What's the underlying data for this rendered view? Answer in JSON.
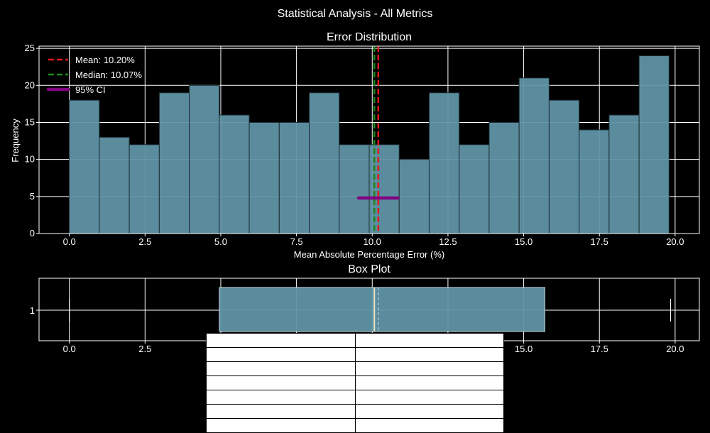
{
  "figure": {
    "suptitle": "Statistical Analysis - All Metrics"
  },
  "colors": {
    "background": "#000000",
    "bar": "#5f93a5",
    "box": "#5f93a5",
    "mean": "#e31a1c",
    "median": "#1a8a1a",
    "ci": "#800080"
  },
  "chart_data": [
    {
      "type": "bar",
      "title": "Error Distribution",
      "xlabel": "Mean Absolute Percentage Error (%)",
      "ylabel": "Frequency",
      "xlim": [
        -1.0,
        20.8
      ],
      "ylim": [
        0,
        25.3
      ],
      "xticks": [
        0.0,
        2.5,
        5.0,
        7.5,
        10.0,
        12.5,
        15.0,
        17.5,
        20.0
      ],
      "xtick_labels": [
        "0.0",
        "2.5",
        "5.0",
        "7.5",
        "10.0",
        "12.5",
        "15.0",
        "17.5",
        "20.0"
      ],
      "yticks": [
        0,
        5,
        10,
        15,
        20,
        25
      ],
      "ytick_labels": [
        "0",
        "5",
        "10",
        "15",
        "20",
        "25"
      ],
      "grid": true,
      "bins": [
        {
          "start": 0.0,
          "end": 0.99,
          "count": 18
        },
        {
          "start": 0.99,
          "end": 1.98,
          "count": 13
        },
        {
          "start": 1.98,
          "end": 2.97,
          "count": 12
        },
        {
          "start": 2.97,
          "end": 3.96,
          "count": 19
        },
        {
          "start": 3.96,
          "end": 4.95,
          "count": 20
        },
        {
          "start": 4.95,
          "end": 5.94,
          "count": 16
        },
        {
          "start": 5.94,
          "end": 6.93,
          "count": 15
        },
        {
          "start": 6.93,
          "end": 7.92,
          "count": 15
        },
        {
          "start": 7.92,
          "end": 8.91,
          "count": 19
        },
        {
          "start": 8.91,
          "end": 9.9,
          "count": 12
        },
        {
          "start": 9.9,
          "end": 10.89,
          "count": 12
        },
        {
          "start": 10.89,
          "end": 11.88,
          "count": 10
        },
        {
          "start": 11.88,
          "end": 12.87,
          "count": 19
        },
        {
          "start": 12.87,
          "end": 13.86,
          "count": 12
        },
        {
          "start": 13.86,
          "end": 14.85,
          "count": 15
        },
        {
          "start": 14.85,
          "end": 15.84,
          "count": 21
        },
        {
          "start": 15.84,
          "end": 16.83,
          "count": 18
        },
        {
          "start": 16.83,
          "end": 17.82,
          "count": 14
        },
        {
          "start": 17.82,
          "end": 18.81,
          "count": 16
        },
        {
          "start": 18.81,
          "end": 19.8,
          "count": 24
        }
      ],
      "mean": 10.2,
      "median": 10.07,
      "ci": {
        "low": 9.55,
        "high": 10.85,
        "y": 4.8
      },
      "legend": {
        "placement": "top-left",
        "entries": [
          {
            "key": "mean",
            "label": "Mean: 10.20%"
          },
          {
            "key": "median",
            "label": "Median: 10.07%"
          },
          {
            "key": "ci",
            "label": "95% CI"
          }
        ]
      }
    },
    {
      "type": "box",
      "title": "Box Plot",
      "orientation": "horizontal",
      "xlim": [
        -1.0,
        20.8
      ],
      "xticks": [
        0.0,
        2.5,
        5.0,
        7.5,
        10.0,
        12.5,
        15.0,
        17.5,
        20.0
      ],
      "xtick_labels": [
        "0.0",
        "2.5",
        "5.0",
        "7.5",
        "10.0",
        "12.5",
        "15.0",
        "17.5",
        "20.0"
      ],
      "ytick_labels": [
        "1"
      ],
      "grid": true,
      "whisker_low": 0.0,
      "q1": 4.95,
      "median": 10.07,
      "mean": 10.2,
      "q3": 15.7,
      "whisker_high": 19.85
    }
  ],
  "stats_table": {
    "rows": [
      [
        "",
        ""
      ],
      [
        "",
        ""
      ],
      [
        "",
        ""
      ],
      [
        "",
        ""
      ],
      [
        "",
        ""
      ],
      [
        "",
        ""
      ],
      [
        "",
        ""
      ]
    ]
  }
}
